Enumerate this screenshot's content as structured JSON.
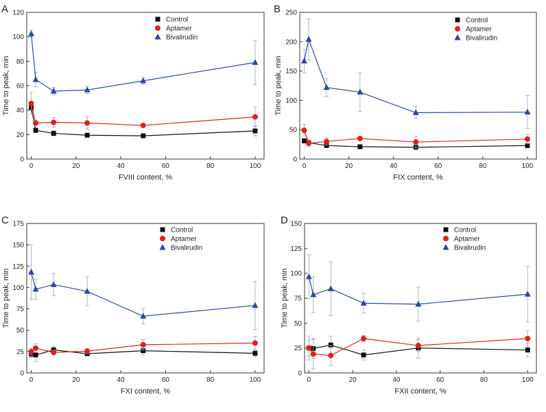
{
  "figure": {
    "ylabel_common": "Time to peak, min"
  },
  "chart_data": [
    {
      "type": "line",
      "panel": "A",
      "xlabel": "FVIII content, %",
      "ylabel": "Time to peak, min",
      "xlim": [
        -2,
        104
      ],
      "ylim": [
        0,
        120
      ],
      "xticks": [
        0,
        20,
        40,
        60,
        80,
        100
      ],
      "yticks": [
        0,
        20,
        40,
        60,
        80,
        100,
        120
      ],
      "legend": "top-right",
      "series": [
        {
          "name": "Control",
          "color": "#111111",
          "marker": "square",
          "x": [
            0,
            2,
            10,
            25,
            50,
            100
          ],
          "y": [
            42,
            23.5,
            21,
            19.5,
            19,
            23
          ],
          "err": [
            3,
            2,
            2,
            1,
            1,
            4
          ]
        },
        {
          "name": "Aptamer",
          "color": "#e02020",
          "marker": "circle",
          "x": [
            0,
            2,
            10,
            25,
            50,
            100
          ],
          "y": [
            45.5,
            29.5,
            30,
            29.5,
            27.5,
            34.5
          ],
          "err": [
            9,
            2,
            4,
            5,
            1,
            8
          ]
        },
        {
          "name": "Bivalirudin",
          "color": "#2b4a9c",
          "marker": "triangle",
          "x": [
            0,
            2,
            10,
            25,
            50,
            100
          ],
          "y": [
            102.5,
            65,
            55.5,
            56.5,
            64,
            79
          ],
          "err": [
            3,
            6,
            3,
            3,
            3,
            18
          ]
        }
      ]
    },
    {
      "type": "line",
      "panel": "B",
      "xlabel": "FIX content, %",
      "ylabel": "Time to peak, min",
      "xlim": [
        -2,
        104
      ],
      "ylim": [
        0,
        250
      ],
      "xticks": [
        0,
        20,
        40,
        60,
        80,
        100
      ],
      "yticks": [
        0,
        50,
        100,
        150,
        200,
        250
      ],
      "legend": "top-right",
      "series": [
        {
          "name": "Control",
          "color": "#111111",
          "marker": "square",
          "x": [
            0,
            2,
            10,
            25,
            50,
            100
          ],
          "y": [
            31,
            28,
            23,
            21,
            20,
            23
          ],
          "err": [
            4,
            6,
            3,
            2,
            2,
            4
          ]
        },
        {
          "name": "Aptamer",
          "color": "#e02020",
          "marker": "circle",
          "x": [
            0,
            2,
            10,
            25,
            50,
            100
          ],
          "y": [
            49,
            27,
            30,
            35,
            29,
            34
          ],
          "err": [
            10,
            5,
            6,
            3,
            10,
            8
          ]
        },
        {
          "name": "Bivalirudin",
          "color": "#2b4a9c",
          "marker": "triangle",
          "x": [
            0,
            2,
            10,
            25,
            50,
            100
          ],
          "y": [
            167,
            204,
            122,
            114,
            79,
            80
          ],
          "err": [
            20,
            35,
            15,
            33,
            10,
            28
          ]
        }
      ]
    },
    {
      "type": "line",
      "panel": "C",
      "xlabel": "FXI content, %",
      "ylabel": "Time to peak, min",
      "xlim": [
        -2,
        104
      ],
      "ylim": [
        0,
        175
      ],
      "xticks": [
        0,
        20,
        40,
        60,
        80,
        100
      ],
      "yticks": [
        0,
        25,
        50,
        75,
        100,
        125,
        150,
        175
      ],
      "legend": "top-right",
      "series": [
        {
          "name": "Control",
          "color": "#111111",
          "marker": "square",
          "x": [
            0,
            2,
            10,
            25,
            50,
            100
          ],
          "y": [
            22,
            21,
            27,
            22.5,
            26,
            23
          ],
          "err": [
            4,
            8,
            4,
            2,
            5,
            4
          ]
        },
        {
          "name": "Aptamer",
          "color": "#e02020",
          "marker": "circle",
          "x": [
            0,
            2,
            10,
            25,
            50,
            100
          ],
          "y": [
            25,
            29,
            24,
            25.5,
            33,
            35
          ],
          "err": [
            4,
            5,
            3,
            3,
            6,
            8
          ]
        },
        {
          "name": "Bivalirudin",
          "color": "#2b4a9c",
          "marker": "triangle",
          "x": [
            0,
            2,
            10,
            25,
            50,
            100
          ],
          "y": [
            118,
            98,
            103.5,
            95.5,
            66.5,
            79
          ],
          "err": [
            32,
            12,
            13,
            17,
            9,
            28
          ]
        }
      ]
    },
    {
      "type": "line",
      "panel": "D",
      "xlabel": "FXII content, %",
      "ylabel": "Time to peak, min",
      "xlim": [
        -2,
        104
      ],
      "ylim": [
        0,
        150
      ],
      "xticks": [
        0,
        20,
        40,
        60,
        80,
        100
      ],
      "yticks": [
        0,
        25,
        50,
        75,
        100,
        125,
        150
      ],
      "legend": "top-right",
      "series": [
        {
          "name": "Control",
          "color": "#111111",
          "marker": "square",
          "x": [
            0,
            2,
            10,
            25,
            50,
            100
          ],
          "y": [
            25,
            24.5,
            28,
            18,
            25,
            23
          ],
          "err": [
            8,
            10,
            9,
            5,
            10,
            7
          ]
        },
        {
          "name": "Aptamer",
          "color": "#e02020",
          "marker": "circle",
          "x": [
            0,
            2,
            10,
            25,
            50,
            100
          ],
          "y": [
            25,
            19,
            17.5,
            34.5,
            27.5,
            34.5
          ],
          "err": [
            12,
            15,
            10,
            3,
            6,
            8
          ]
        },
        {
          "name": "Bivalirudin",
          "color": "#2b4a9c",
          "marker": "triangle",
          "x": [
            0,
            2,
            10,
            25,
            50,
            100
          ],
          "y": [
            96.5,
            78.5,
            84.5,
            70,
            69,
            79
          ],
          "err": [
            22,
            18,
            27,
            10,
            17,
            28
          ]
        }
      ]
    }
  ]
}
